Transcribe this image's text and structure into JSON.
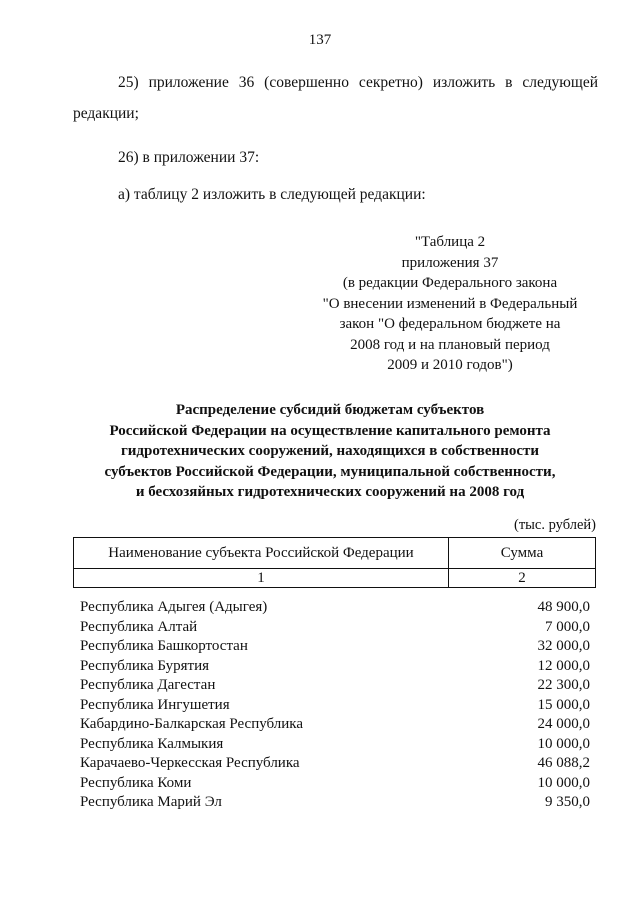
{
  "page_number": "137",
  "paragraphs": {
    "p25_line1": "25) приложение 36 (совершенно секретно) изложить в следующей",
    "p25_line2": "редакции;",
    "p26": "26) в приложении 37:",
    "pa": "а) таблицу 2 изложить в следующей редакции:"
  },
  "reference": [
    "\"Таблица 2",
    "приложения 37",
    "(в редакции Федерального закона",
    "\"О внесении изменений в Федеральный",
    "закон \"О федеральном бюджете на",
    "2008 год и на плановый период",
    "2009 и 2010 годов\")"
  ],
  "title": [
    "Распределение субсидий бюджетам субъектов",
    "Российской Федерации на осуществление капитального ремонта",
    "гидротехнических сооружений, находящихся в собственности",
    "субъектов  Российской Федерации, муниципальной собственности,",
    "и бесхозяйных  гидротехнических сооружений на 2008 год"
  ],
  "units": "(тыс. рублей)",
  "table": {
    "headers": [
      "Наименование субъекта Российской Федерации",
      "Сумма"
    ],
    "column_numbers": [
      "1",
      "2"
    ],
    "rows": [
      {
        "name": "Республика Адыгея (Адыгея)",
        "sum": "48 900,0"
      },
      {
        "name": "Республика Алтай",
        "sum": "7 000,0"
      },
      {
        "name": "Республика Башкортостан",
        "sum": "32 000,0"
      },
      {
        "name": "Республика Бурятия",
        "sum": "12 000,0"
      },
      {
        "name": "Республика Дагестан",
        "sum": "22 300,0"
      },
      {
        "name": "Республика Ингушетия",
        "sum": "15 000,0"
      },
      {
        "name": "Кабардино-Балкарская Республика",
        "sum": "24 000,0"
      },
      {
        "name": "Республика Калмыкия",
        "sum": "10 000,0"
      },
      {
        "name": "Карачаево-Черкесская Республика",
        "sum": "46 088,2"
      },
      {
        "name": "Республика Коми",
        "sum": "10 000,0"
      },
      {
        "name": "Республика Марий Эл",
        "sum": "9 350,0"
      }
    ]
  }
}
